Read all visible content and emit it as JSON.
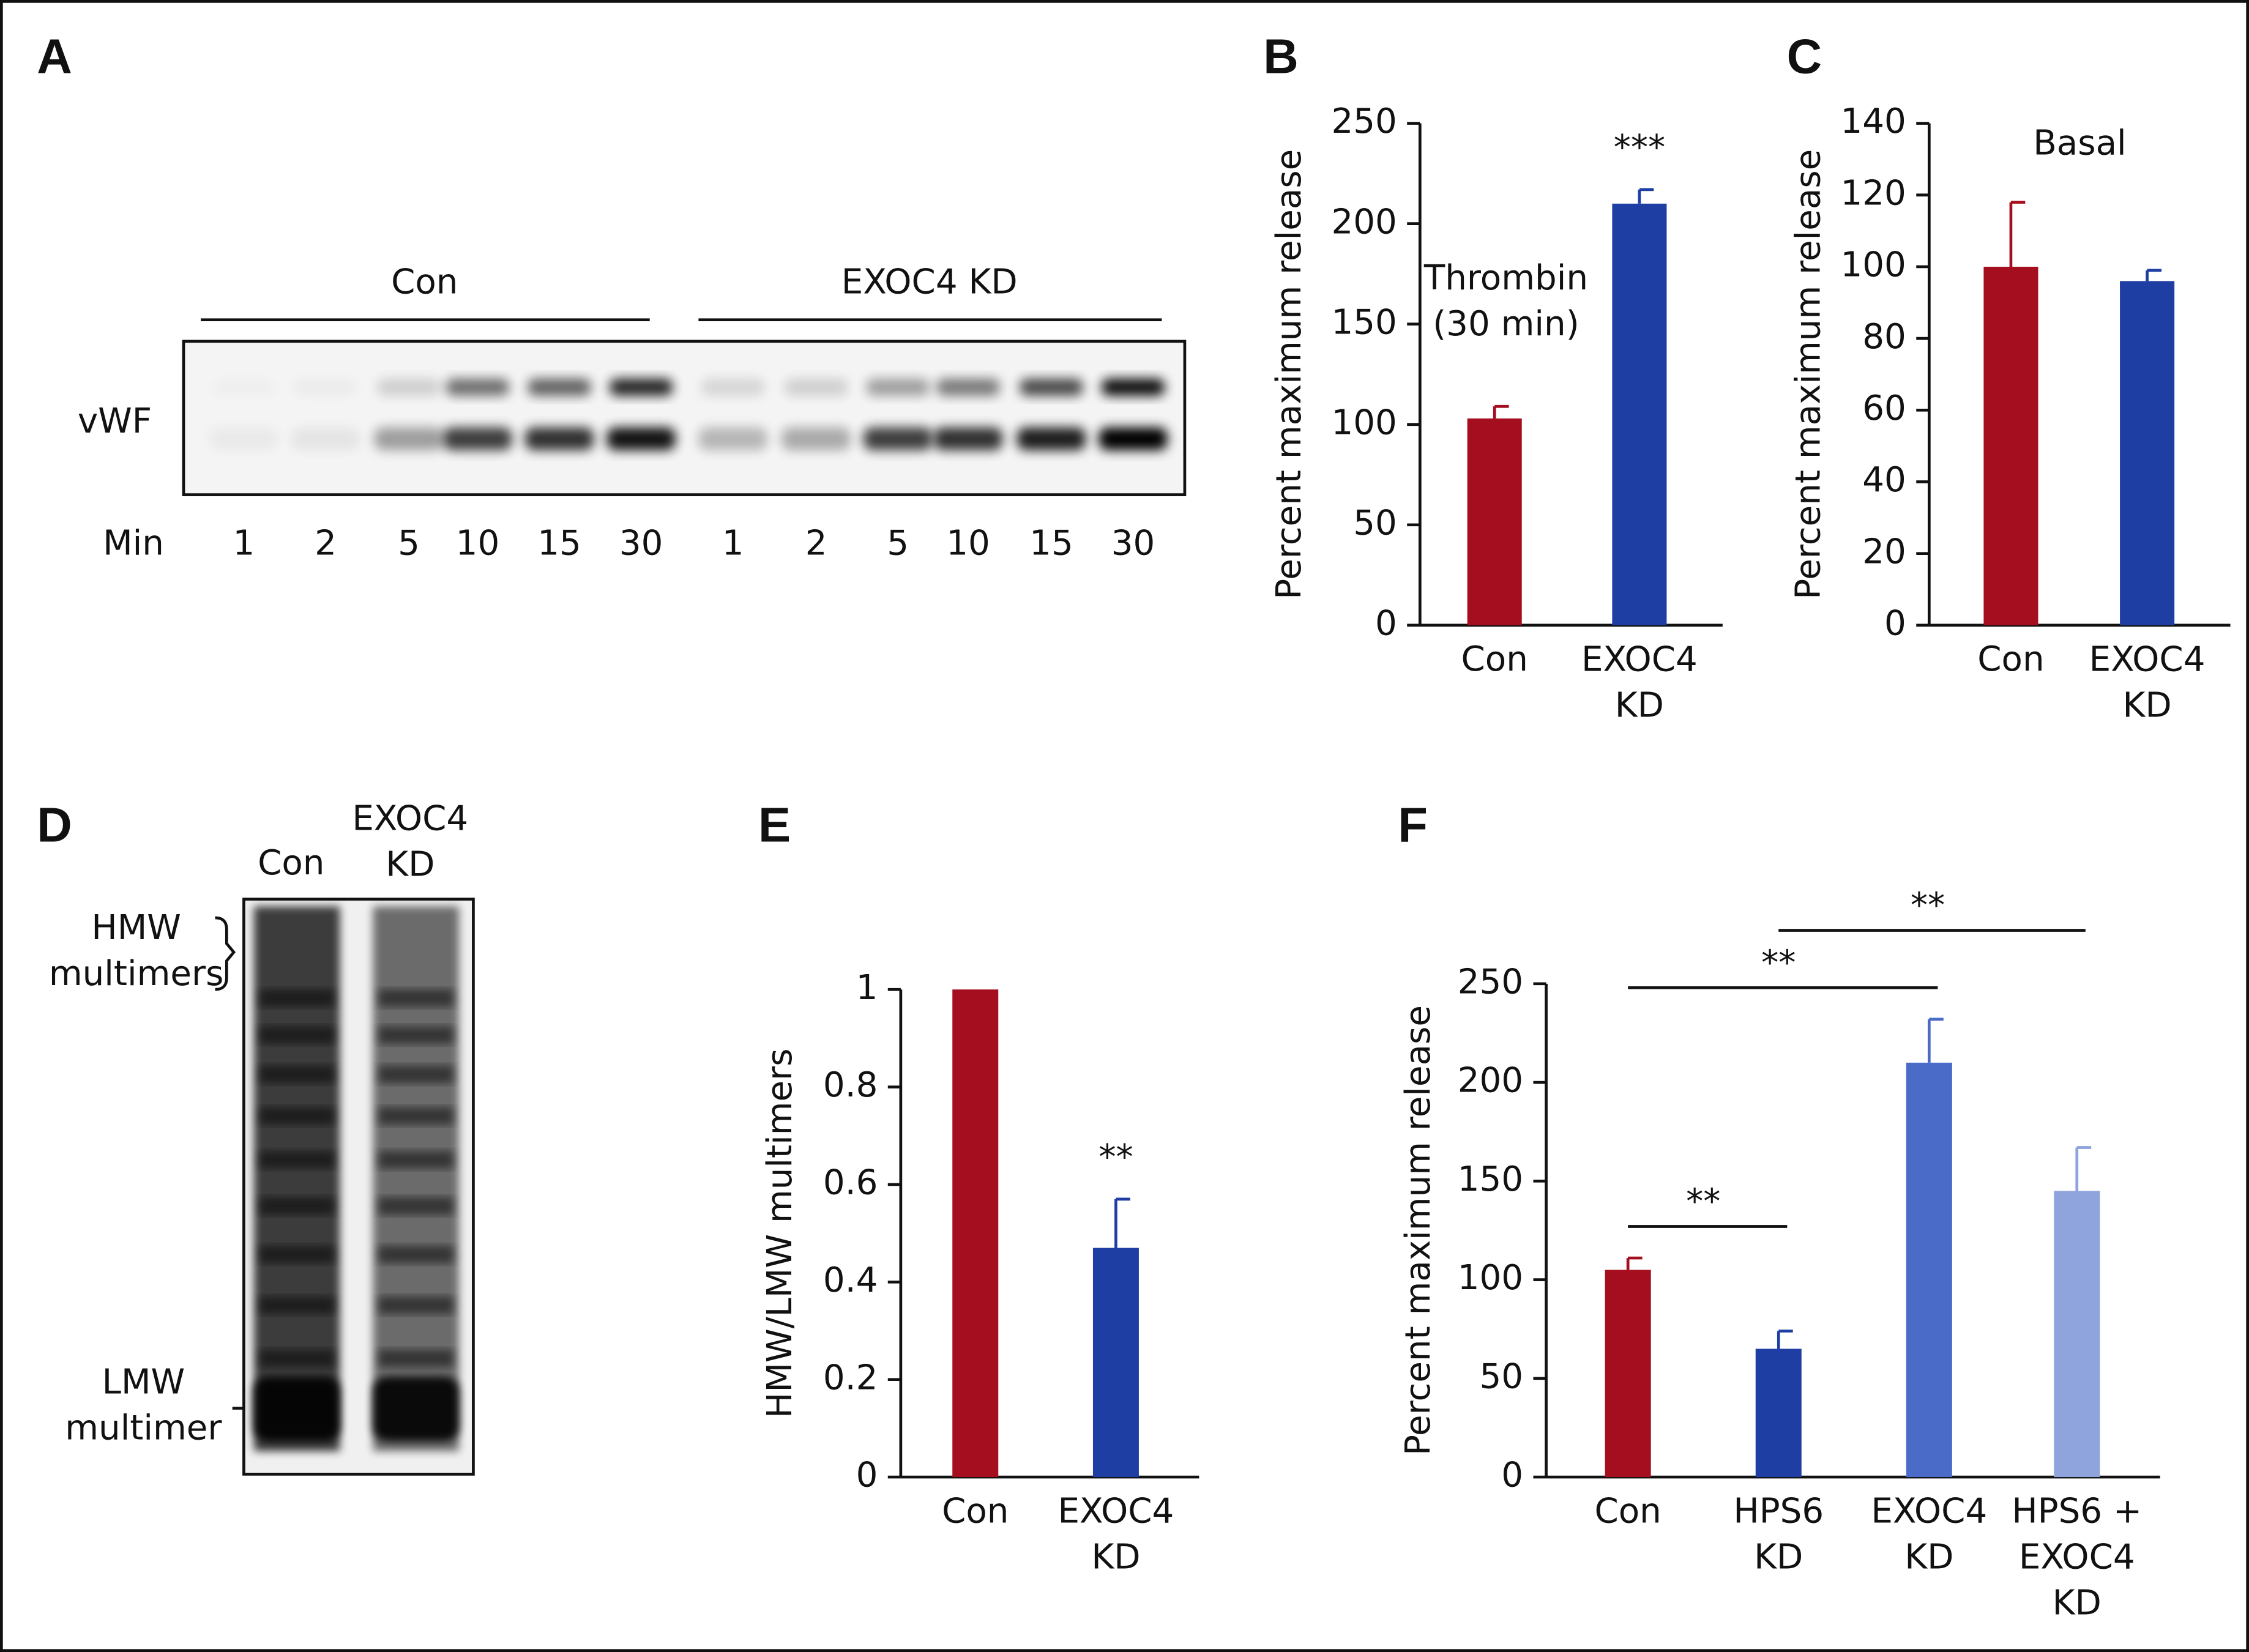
{
  "blot_a": {
    "panel": "A",
    "groups": [
      "Con",
      "EXOC4 KD"
    ],
    "row_label": "vWF",
    "x_label": "Min",
    "lanes": [
      1,
      2,
      5,
      10,
      15,
      30,
      1,
      2,
      5,
      10,
      15,
      30
    ]
  },
  "blot_d": {
    "panel": "D",
    "lanes": [
      "Con",
      "EXOC4\nKD"
    ],
    "top_label": "HMW\nmultimers",
    "bottom_label": "LMW\nmultimer"
  },
  "chart_data": [
    {
      "type": "bar",
      "panel": "B",
      "y_label": "Percent maximum release",
      "note": "Thrombin\n(30 min)",
      "categories": [
        "Con",
        "EXOC4\nKD"
      ],
      "values": [
        103,
        210
      ],
      "errors": [
        6,
        7
      ],
      "colors": [
        "#a50e1e",
        "#1f3ea3"
      ],
      "value_annotations": [
        null,
        "***"
      ],
      "ylim": [
        0,
        250
      ],
      "yticks": [
        0,
        50,
        100,
        150,
        200,
        250
      ]
    },
    {
      "type": "bar",
      "panel": "C",
      "y_label": "Percent maximum release",
      "note": "Basal",
      "categories": [
        "Con",
        "EXOC4\nKD"
      ],
      "values": [
        100,
        96
      ],
      "errors": [
        18,
        3
      ],
      "colors": [
        "#a50e1e",
        "#1f3ea3"
      ],
      "ylim": [
        0,
        140
      ],
      "yticks": [
        0,
        20,
        40,
        60,
        80,
        100,
        120,
        140
      ]
    },
    {
      "type": "bar",
      "panel": "E",
      "y_label": "HMW/LMW multimers",
      "categories": [
        "Con",
        "EXOC4\nKD"
      ],
      "values": [
        1,
        0.47
      ],
      "errors": [
        0,
        0.1
      ],
      "colors": [
        "#a50e1e",
        "#1f3ea3"
      ],
      "value_annotations": [
        null,
        "**"
      ],
      "ylim": [
        0,
        1
      ],
      "yticks": [
        0,
        0.2,
        0.4,
        0.6,
        0.8,
        1
      ]
    },
    {
      "type": "bar",
      "panel": "F",
      "y_label": "Percent maximum release",
      "categories": [
        "Con",
        "HPS6\nKD",
        "EXOC4\nKD",
        "HPS6 +\nEXOC4\nKD"
      ],
      "values": [
        105,
        65,
        210,
        145
      ],
      "errors": [
        6,
        9,
        22,
        22
      ],
      "colors": [
        "#a50e1e",
        "#1f3ea3",
        "#4a6cc8",
        "#8fa3dc"
      ],
      "comparisons": [
        {
          "label": "**",
          "between": [
            0,
            1
          ]
        },
        {
          "label": "**",
          "between": [
            0,
            2
          ]
        },
        {
          "label": "**",
          "between": [
            1,
            3
          ]
        }
      ],
      "ylim": [
        0,
        250
      ],
      "yticks": [
        0,
        50,
        100,
        150,
        200,
        250
      ]
    }
  ]
}
